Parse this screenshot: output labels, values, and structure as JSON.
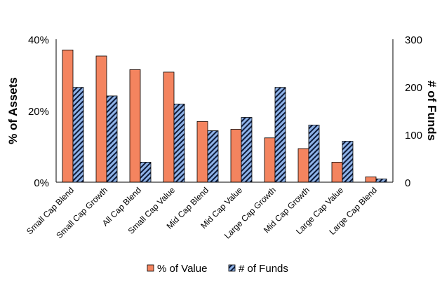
{
  "chart_data": {
    "type": "bar",
    "categories": [
      "Small Cap Blend",
      "Small Cap Growth",
      "All Cap Blend",
      "Small Cap Value",
      "Mid Cap Blend",
      "Mid Cap Value",
      "Large Cap Growth",
      "Mid Cap Growth",
      "Large Cap Value",
      "Large Cap Blend"
    ],
    "series": [
      {
        "name": "% of Value",
        "axis": "left",
        "color": "#F4845F",
        "values": [
          37,
          35.3,
          31.5,
          30.8,
          17,
          14.8,
          12.4,
          9.4,
          5.6,
          1.5
        ]
      },
      {
        "name": "# of Funds",
        "axis": "right",
        "color": "#8FB3E8",
        "values": [
          199,
          181,
          42,
          164,
          108,
          136,
          199,
          120,
          86,
          7
        ]
      }
    ],
    "ylabel_left": "% of Assets",
    "ylabel_right": "# of Funds",
    "ylim_left": [
      0,
      40
    ],
    "yticks_left": [
      "0%",
      "20%",
      "40%"
    ],
    "ylim_right": [
      0,
      300
    ],
    "yticks_right": [
      "0",
      "100",
      "200",
      "300"
    ],
    "grid": false,
    "legend": "bottom"
  }
}
